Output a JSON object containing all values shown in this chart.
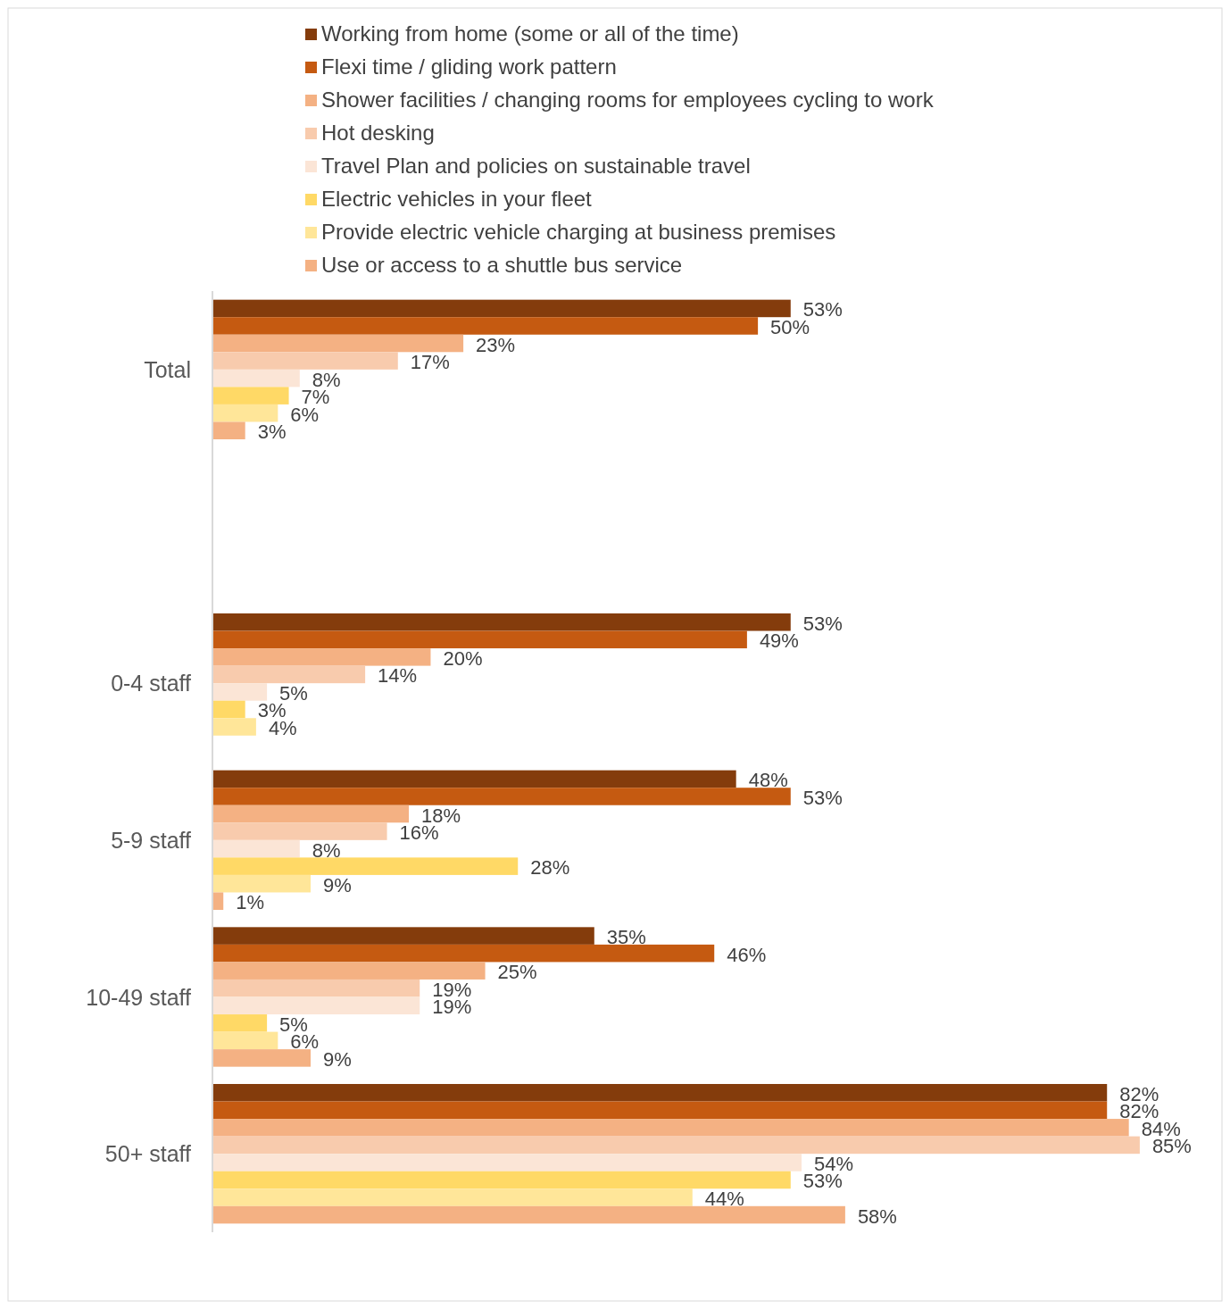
{
  "chart_data": {
    "type": "bar",
    "orientation": "horizontal",
    "categories": [
      "Total",
      null,
      "0-4 staff",
      "5-9 staff",
      "10-49 staff",
      "50+ staff"
    ],
    "series": [
      {
        "name": "Working from home (some or all of the time)",
        "color": "#843c0c",
        "values": [
          53,
          null,
          53,
          48,
          35,
          82
        ],
        "value_labels": [
          "53%",
          null,
          "53%",
          "48%",
          "35%",
          "82%"
        ]
      },
      {
        "name": "Flexi time / gliding work pattern",
        "color": "#c55a11",
        "values": [
          50,
          null,
          49,
          53,
          46,
          82
        ],
        "value_labels": [
          "50%",
          null,
          "49%",
          "53%",
          "46%",
          "82%"
        ]
      },
      {
        "name": "Shower facilities / changing rooms for employees cycling to work",
        "color": "#f4b183",
        "values": [
          23,
          null,
          20,
          18,
          25,
          84
        ],
        "value_labels": [
          "23%",
          null,
          "20%",
          "18%",
          "25%",
          "84%"
        ]
      },
      {
        "name": "Hot desking",
        "color": "#f8cbad",
        "values": [
          17,
          null,
          14,
          16,
          19,
          85
        ],
        "value_labels": [
          "17%",
          null,
          "14%",
          "16%",
          "19%",
          "85%"
        ]
      },
      {
        "name": "Travel Plan and policies on sustainable travel",
        "color": "#fbe5d6",
        "values": [
          8,
          null,
          5,
          8,
          19,
          54
        ],
        "value_labels": [
          "8%",
          null,
          "5%",
          "8%",
          "19%",
          "54%"
        ]
      },
      {
        "name": "Electric vehicles in your fleet",
        "color": "#ffd966",
        "values": [
          7,
          null,
          3,
          28,
          5,
          53
        ],
        "value_labels": [
          "7%",
          null,
          "3%",
          "28%",
          "5%",
          "53%"
        ]
      },
      {
        "name": "Provide electric vehicle charging at business premises",
        "color": "#ffe699",
        "values": [
          6,
          null,
          4,
          9,
          6,
          44
        ],
        "value_labels": [
          "6%",
          null,
          "4%",
          "9%",
          "6%",
          "44%"
        ]
      },
      {
        "name": "Use or access to a shuttle bus service",
        "color": "#f4b183",
        "values": [
          3,
          null,
          null,
          1,
          9,
          58
        ],
        "value_labels": [
          "3%",
          null,
          null,
          "1%",
          "9%",
          "58%"
        ]
      }
    ],
    "legend": "top",
    "tick_labels": "y"
  }
}
